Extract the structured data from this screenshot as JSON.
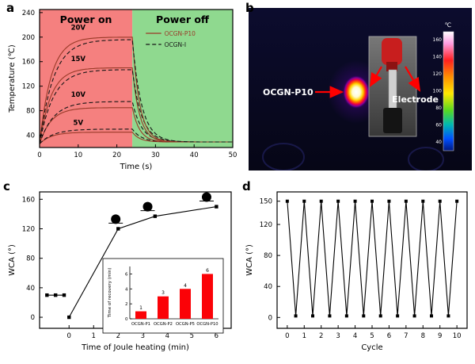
{
  "figure": {
    "panels": [
      {
        "label": "a"
      },
      {
        "label": "b"
      },
      {
        "label": "c"
      },
      {
        "label": "d"
      }
    ]
  },
  "chart_data": [
    {
      "id": "panel_a",
      "type": "line",
      "xlabel": "Time (s)",
      "ylabel": "Temperature (℃)",
      "xlim": [
        0,
        50
      ],
      "ylim": [
        20,
        245
      ],
      "xticks": [
        0,
        10,
        20,
        30,
        40,
        50
      ],
      "yticks": [
        40,
        80,
        120,
        160,
        200,
        240
      ],
      "room_temp": 26,
      "final_temp": 29,
      "power_off_time": 24,
      "power_on_region": {
        "label": "Power on",
        "x0": 0,
        "x1": 24,
        "color": "#f5807f"
      },
      "power_off_region": {
        "label": "Power off",
        "x0": 24,
        "x1": 50,
        "color": "#8fd98f"
      },
      "legend": [
        {
          "label": "OCGN-P10",
          "style": "solid",
          "color": "#9a3a28"
        },
        {
          "label": "OCGN-I",
          "style": "dashed",
          "color": "#151515"
        }
      ],
      "series": [
        {
          "name": "OCGN-P10 5V",
          "voltage": "5V",
          "style": "solid",
          "plateau": 45
        },
        {
          "name": "OCGN-I 5V",
          "voltage": "5V",
          "style": "dashed",
          "plateau": 50
        },
        {
          "name": "OCGN-P10 10V",
          "voltage": "10V",
          "style": "solid",
          "plateau": 85
        },
        {
          "name": "OCGN-I 10V",
          "voltage": "10V",
          "style": "dashed",
          "plateau": 95
        },
        {
          "name": "OCGN-P10 15V",
          "voltage": "15V",
          "style": "solid",
          "plateau": 150
        },
        {
          "name": "OCGN-I 15V",
          "voltage": "15V",
          "style": "dashed",
          "plateau": 147
        },
        {
          "name": "OCGN-P10 20V",
          "voltage": "20V",
          "style": "solid",
          "plateau": 200
        },
        {
          "name": "OCGN-I 20V",
          "voltage": "20V",
          "style": "dashed",
          "plateau": 196
        }
      ],
      "voltage_labels": [
        {
          "label": "5V",
          "x": 10,
          "y": 57
        },
        {
          "label": "10V",
          "x": 10,
          "y": 103
        },
        {
          "label": "15V",
          "x": 10,
          "y": 161
        },
        {
          "label": "20V",
          "x": 10,
          "y": 212
        }
      ]
    },
    {
      "id": "panel_c",
      "type": "line",
      "xlabel": "Time of Joule heating (min)",
      "ylabel": "WCA (°)",
      "xlim": [
        -1.2,
        6.6
      ],
      "ylim": [
        -15,
        170
      ],
      "xticks": [
        0,
        1,
        2,
        3,
        4,
        5,
        6
      ],
      "yticks": [
        0,
        40,
        80,
        120,
        160
      ],
      "series": [
        {
          "name": "pristine",
          "x": [
            -0.9,
            -0.55,
            -0.2
          ],
          "y": [
            30,
            30,
            30
          ]
        },
        {
          "name": "after-heating",
          "x": [
            0,
            2,
            3.5,
            6
          ],
          "y": [
            0,
            120,
            137,
            150
          ]
        }
      ],
      "droplets": [
        {
          "x": 1.9,
          "y": 133
        },
        {
          "x": 3.2,
          "y": 150
        },
        {
          "x": 5.6,
          "y": 163
        }
      ],
      "inset": {
        "type": "bar",
        "ylabel": "Time of recovery (min)",
        "categories": [
          "OCGN-P1",
          "OCGN-P2",
          "OCGN-P5",
          "OCGN-P10"
        ],
        "values": [
          1,
          3,
          4,
          6
        ],
        "value_labels": [
          "1",
          "3",
          "4",
          "6"
        ],
        "bar_color": "#fb0207",
        "ylim": [
          0,
          7
        ],
        "yticks": [
          0,
          2,
          4,
          6
        ]
      }
    },
    {
      "id": "panel_d",
      "type": "line",
      "xlabel": "Cycle",
      "ylabel": "WCA (°)",
      "xlim": [
        -0.6,
        10.6
      ],
      "ylim": [
        -14,
        162
      ],
      "xticks": [
        0,
        1,
        2,
        3,
        4,
        5,
        6,
        7,
        8,
        9,
        10
      ],
      "yticks": [
        0,
        40,
        80,
        120,
        150
      ],
      "x": [
        0,
        0.5,
        1,
        1.5,
        2,
        2.5,
        3,
        3.5,
        4,
        4.5,
        5,
        5.5,
        6,
        6.5,
        7,
        7.5,
        8,
        8.5,
        9,
        9.5,
        10
      ],
      "y": [
        150,
        2,
        150,
        2,
        150,
        2,
        150,
        2,
        150,
        2,
        150,
        2,
        150,
        2,
        150,
        2,
        150,
        2,
        150,
        2,
        150
      ]
    }
  ],
  "panel_b": {
    "sample_label": "OCGN-P10",
    "electrode_label": "Electrode",
    "colorbar": {
      "unit": "℃",
      "ticks": [
        160,
        140,
        120,
        100,
        80,
        60,
        40
      ]
    }
  }
}
